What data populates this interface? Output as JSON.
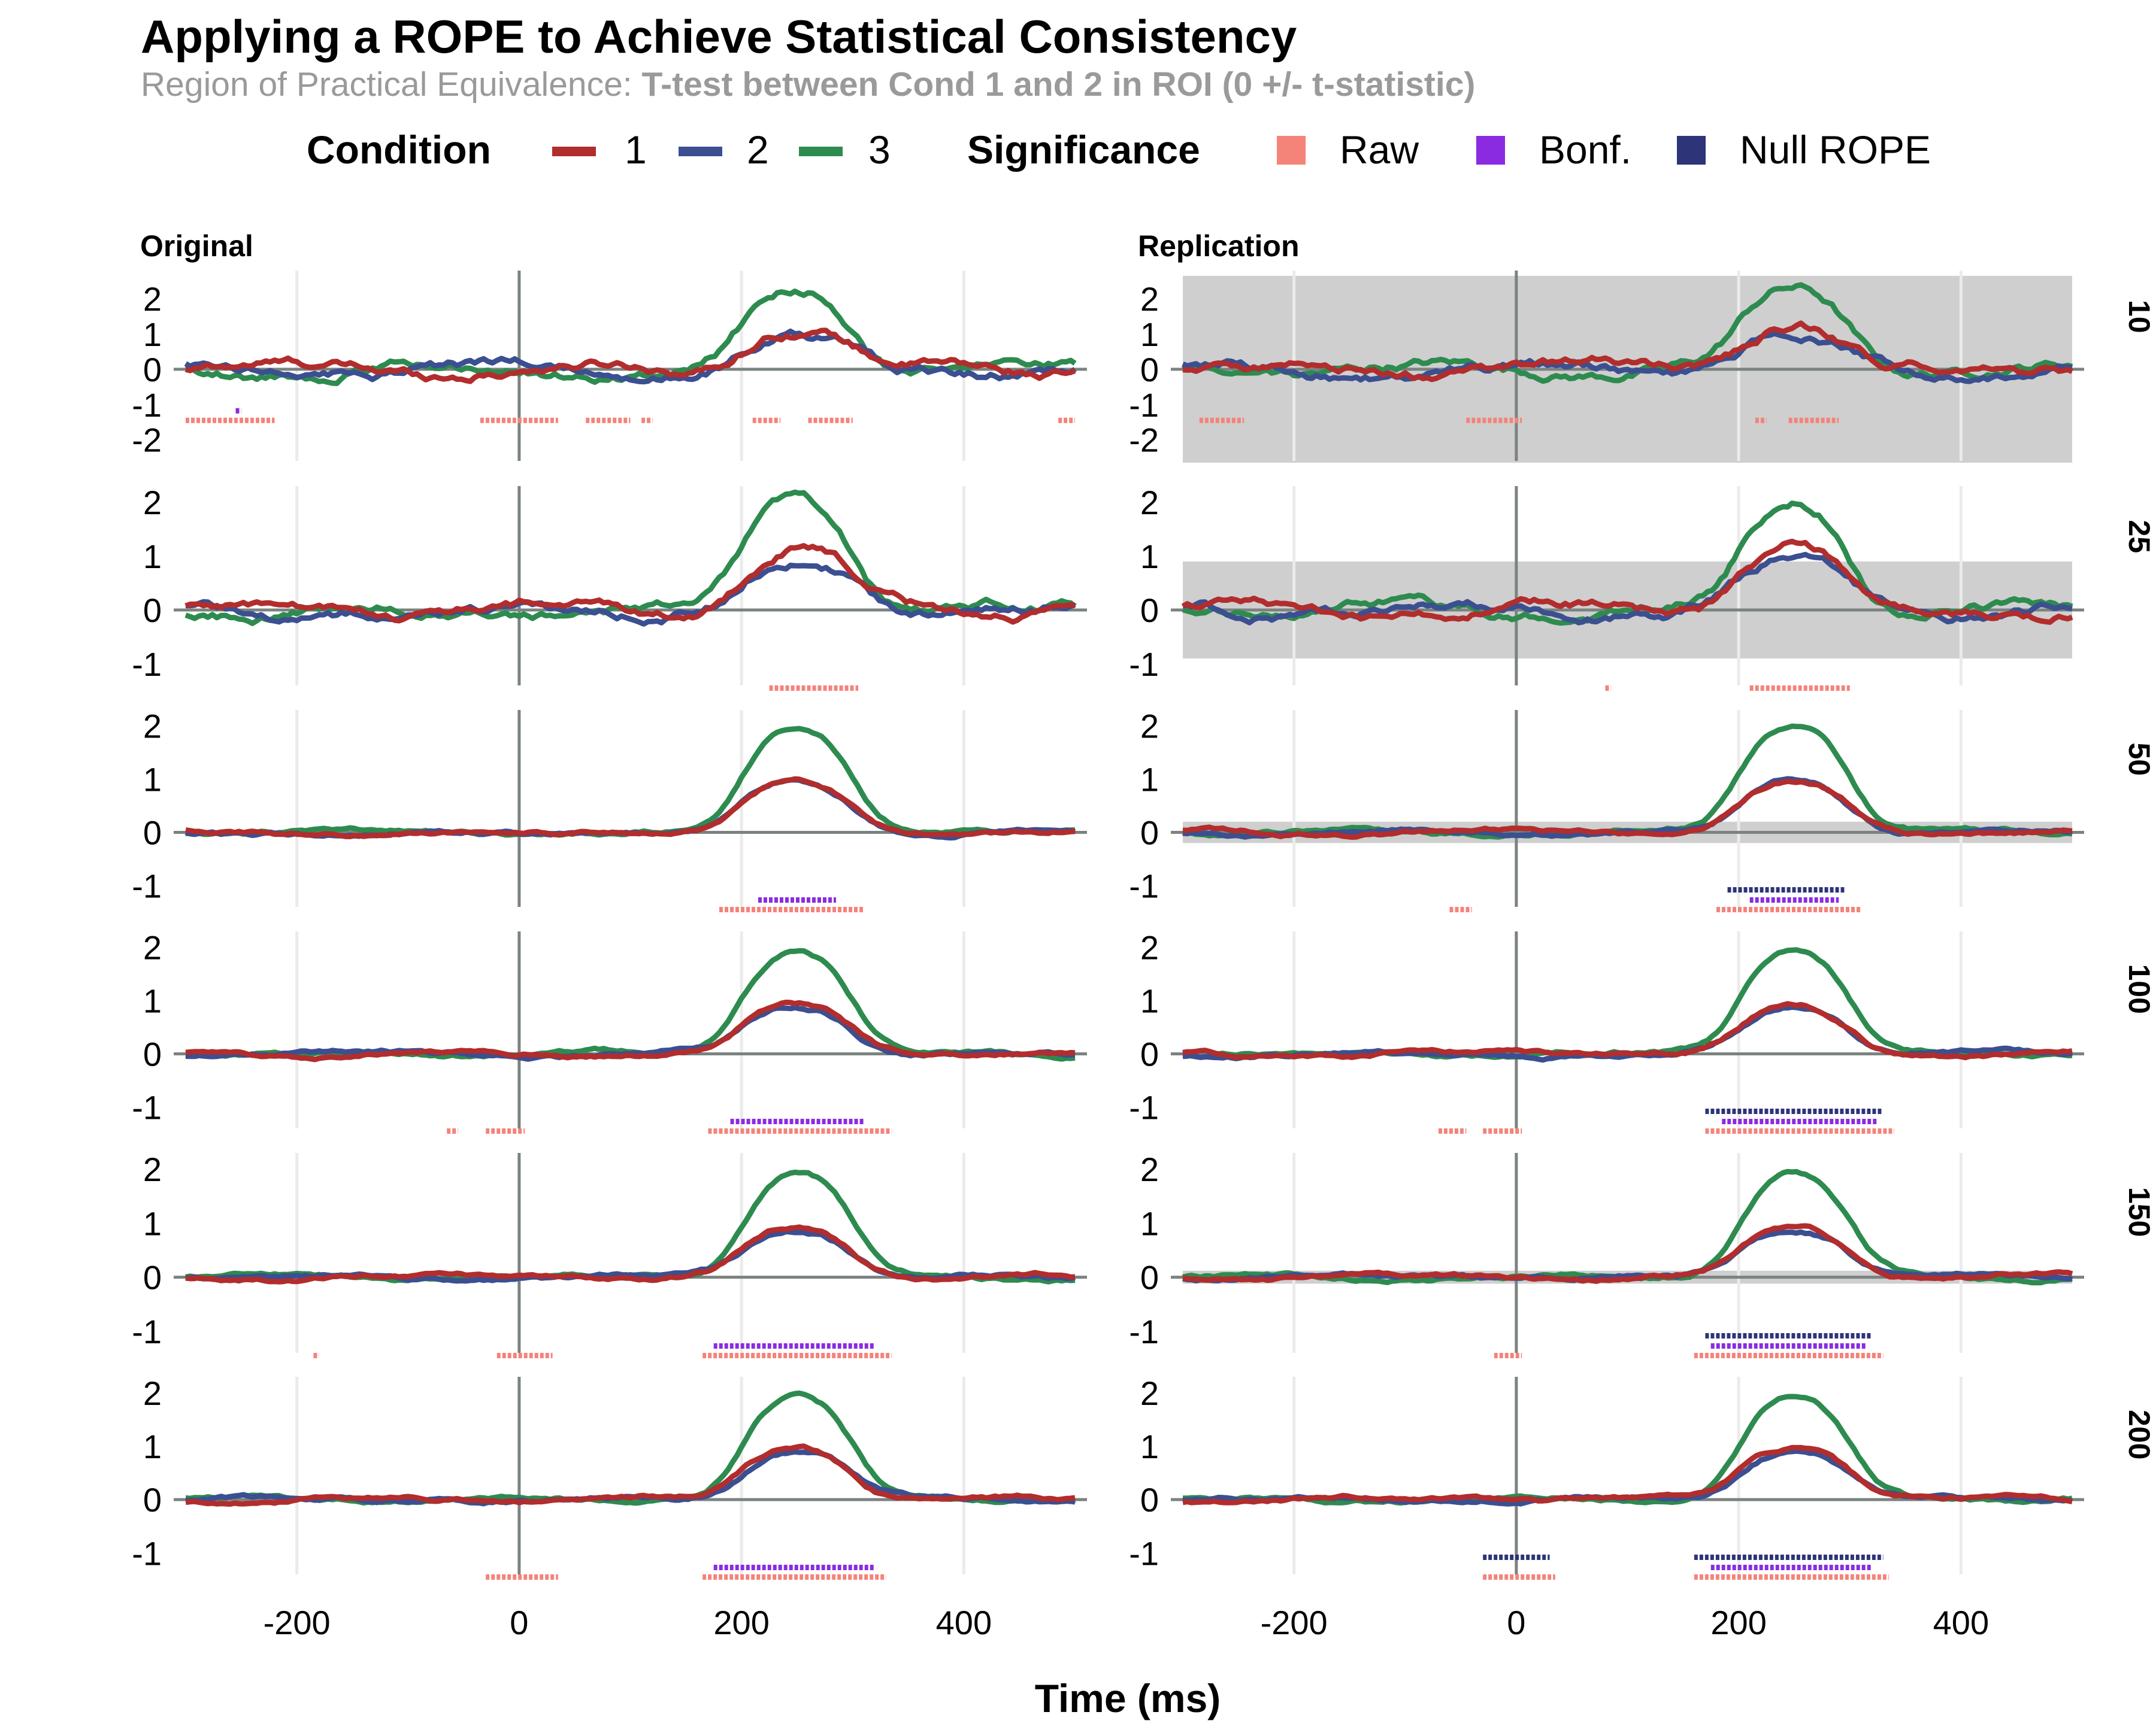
{
  "chart_data": {
    "type": "line",
    "title": "Applying a ROPE to Achieve Statistical Consistency",
    "subtitle_prefix": "Region of Practical Equivalence: ",
    "subtitle_strong": "T-test between Cond 1 and 2 in ROI (0 +/- t-statistic)",
    "xlabel": "Time (ms)",
    "ylabel": "",
    "x_range": [
      -300,
      500
    ],
    "x_ticks": [
      -200,
      0,
      200,
      400
    ],
    "x_tick_labels": [
      "-200",
      "0",
      "200",
      "400"
    ],
    "columns": [
      "Original",
      "Replication"
    ],
    "rows": [
      "10",
      "25",
      "50",
      "100",
      "150",
      "200"
    ],
    "legend": {
      "condition_title": "Condition",
      "conditions": [
        {
          "label": "1",
          "color": "#b22d2d"
        },
        {
          "label": "2",
          "color": "#3b4f91"
        },
        {
          "label": "3",
          "color": "#2e8b4f"
        }
      ],
      "significance_title": "Significance",
      "significance": [
        {
          "label": "Raw",
          "color": "#f4837a"
        },
        {
          "label": "Bonf.",
          "color": "#8a2be2"
        },
        {
          "label": "Null ROPE",
          "color": "#2e3478"
        }
      ]
    },
    "panels": [
      {
        "row": "10",
        "ylim": [
          -2.6,
          2.8
        ],
        "y_ticks": [
          2,
          1,
          0,
          -1,
          -2
        ],
        "y_tick_labels": [
          "2",
          "1",
          "0",
          "-1",
          "-2"
        ],
        "peaks": [
          1.25,
          1.0,
          2.35
        ],
        "rope": [
          null,
          2.65
        ],
        "sig": {
          "Original": {
            "Raw": [
              [
                -300,
                -220
              ],
              [
                -35,
                35
              ],
              [
                60,
                100
              ],
              [
                110,
                120
              ],
              [
                210,
                235
              ],
              [
                260,
                300
              ],
              [
                485,
                500
              ]
            ],
            "Bonf.": [
              [
                -255,
                -250
              ]
            ],
            "Null ROPE": []
          },
          "Replication": {
            "Raw": [
              [
                -285,
                -245
              ],
              [
                -45,
                5
              ],
              [
                215,
                225
              ],
              [
                245,
                290
              ]
            ],
            "Bonf.": [],
            "Null ROPE": []
          }
        }
      },
      {
        "row": "25",
        "ylim": [
          -1.4,
          2.3
        ],
        "y_ticks": [
          2,
          1,
          0,
          -1
        ],
        "y_tick_labels": [
          "2",
          "1",
          "0",
          "-1"
        ],
        "peaks": [
          1.2,
          1.0,
          2.1
        ],
        "rope": [
          null,
          0.9
        ],
        "sig": {
          "Original": {
            "Raw": [
              [
                225,
                305
              ]
            ],
            "Bonf.": [],
            "Null ROPE": []
          },
          "Replication": {
            "Raw": [
              [
                80,
                85
              ],
              [
                210,
                300
              ]
            ],
            "Bonf.": [],
            "Null ROPE": []
          }
        }
      },
      {
        "row": "50",
        "ylim": [
          -1.4,
          2.3
        ],
        "y_ticks": [
          2,
          1,
          0,
          -1
        ],
        "y_tick_labels": [
          "2",
          "1",
          "0",
          "-1"
        ],
        "peaks": [
          1.0,
          1.0,
          2.1
        ],
        "rope": [
          null,
          0.2
        ],
        "sig": {
          "Original": {
            "Raw": [
              [
                180,
                310
              ]
            ],
            "Bonf.": [
              [
                215,
                285
              ]
            ],
            "Null ROPE": []
          },
          "Replication": {
            "Raw": [
              [
                -60,
                -40
              ],
              [
                180,
                310
              ]
            ],
            "Bonf.": [
              [
                210,
                290
              ]
            ],
            "Null ROPE": [
              [
                190,
                295
              ]
            ]
          }
        }
      },
      {
        "row": "100",
        "ylim": [
          -1.4,
          2.3
        ],
        "y_ticks": [
          2,
          1,
          0,
          -1
        ],
        "y_tick_labels": [
          "2",
          "1",
          "0",
          "-1"
        ],
        "peaks": [
          0.95,
          0.95,
          2.0
        ],
        "rope": [
          null,
          null
        ],
        "sig": {
          "Original": {
            "Raw": [
              [
                -65,
                -55
              ],
              [
                -30,
                5
              ],
              [
                170,
                335
              ]
            ],
            "Bonf.": [
              [
                190,
                310
              ]
            ],
            "Null ROPE": []
          },
          "Replication": {
            "Raw": [
              [
                -70,
                -45
              ],
              [
                -30,
                5
              ],
              [
                170,
                340
              ]
            ],
            "Bonf.": [
              [
                185,
                325
              ]
            ],
            "Null ROPE": [
              [
                170,
                330
              ]
            ]
          }
        }
      },
      {
        "row": "150",
        "ylim": [
          -1.4,
          2.3
        ],
        "y_ticks": [
          2,
          1,
          0,
          -1
        ],
        "y_tick_labels": [
          "2",
          "1",
          "0",
          "-1"
        ],
        "peaks": [
          0.95,
          0.9,
          2.0
        ],
        "rope": [
          null,
          0.12
        ],
        "sig": {
          "Original": {
            "Raw": [
              [
                -185,
                -180
              ],
              [
                -20,
                30
              ],
              [
                165,
                335
              ]
            ],
            "Bonf.": [
              [
                175,
                320
              ]
            ],
            "Null ROPE": []
          },
          "Replication": {
            "Raw": [
              [
                -20,
                5
              ],
              [
                160,
                330
              ]
            ],
            "Bonf.": [
              [
                175,
                315
              ]
            ],
            "Null ROPE": [
              [
                170,
                320
              ]
            ]
          }
        }
      },
      {
        "row": "200",
        "ylim": [
          -1.4,
          2.3
        ],
        "y_ticks": [
          2,
          1,
          0,
          -1
        ],
        "y_tick_labels": [
          "2",
          "1",
          "0",
          "-1"
        ],
        "peaks": [
          1.0,
          0.95,
          2.0
        ],
        "rope": [
          null,
          null
        ],
        "sig": {
          "Original": {
            "Raw": [
              [
                -30,
                35
              ],
              [
                165,
                330
              ]
            ],
            "Bonf.": [
              [
                175,
                320
              ]
            ],
            "Null ROPE": []
          },
          "Replication": {
            "Raw": [
              [
                -30,
                35
              ],
              [
                160,
                335
              ]
            ],
            "Bonf.": [
              [
                175,
                320
              ]
            ],
            "Null ROPE": [
              [
                -30,
                30
              ],
              [
                160,
                330
              ]
            ]
          }
        }
      }
    ]
  }
}
